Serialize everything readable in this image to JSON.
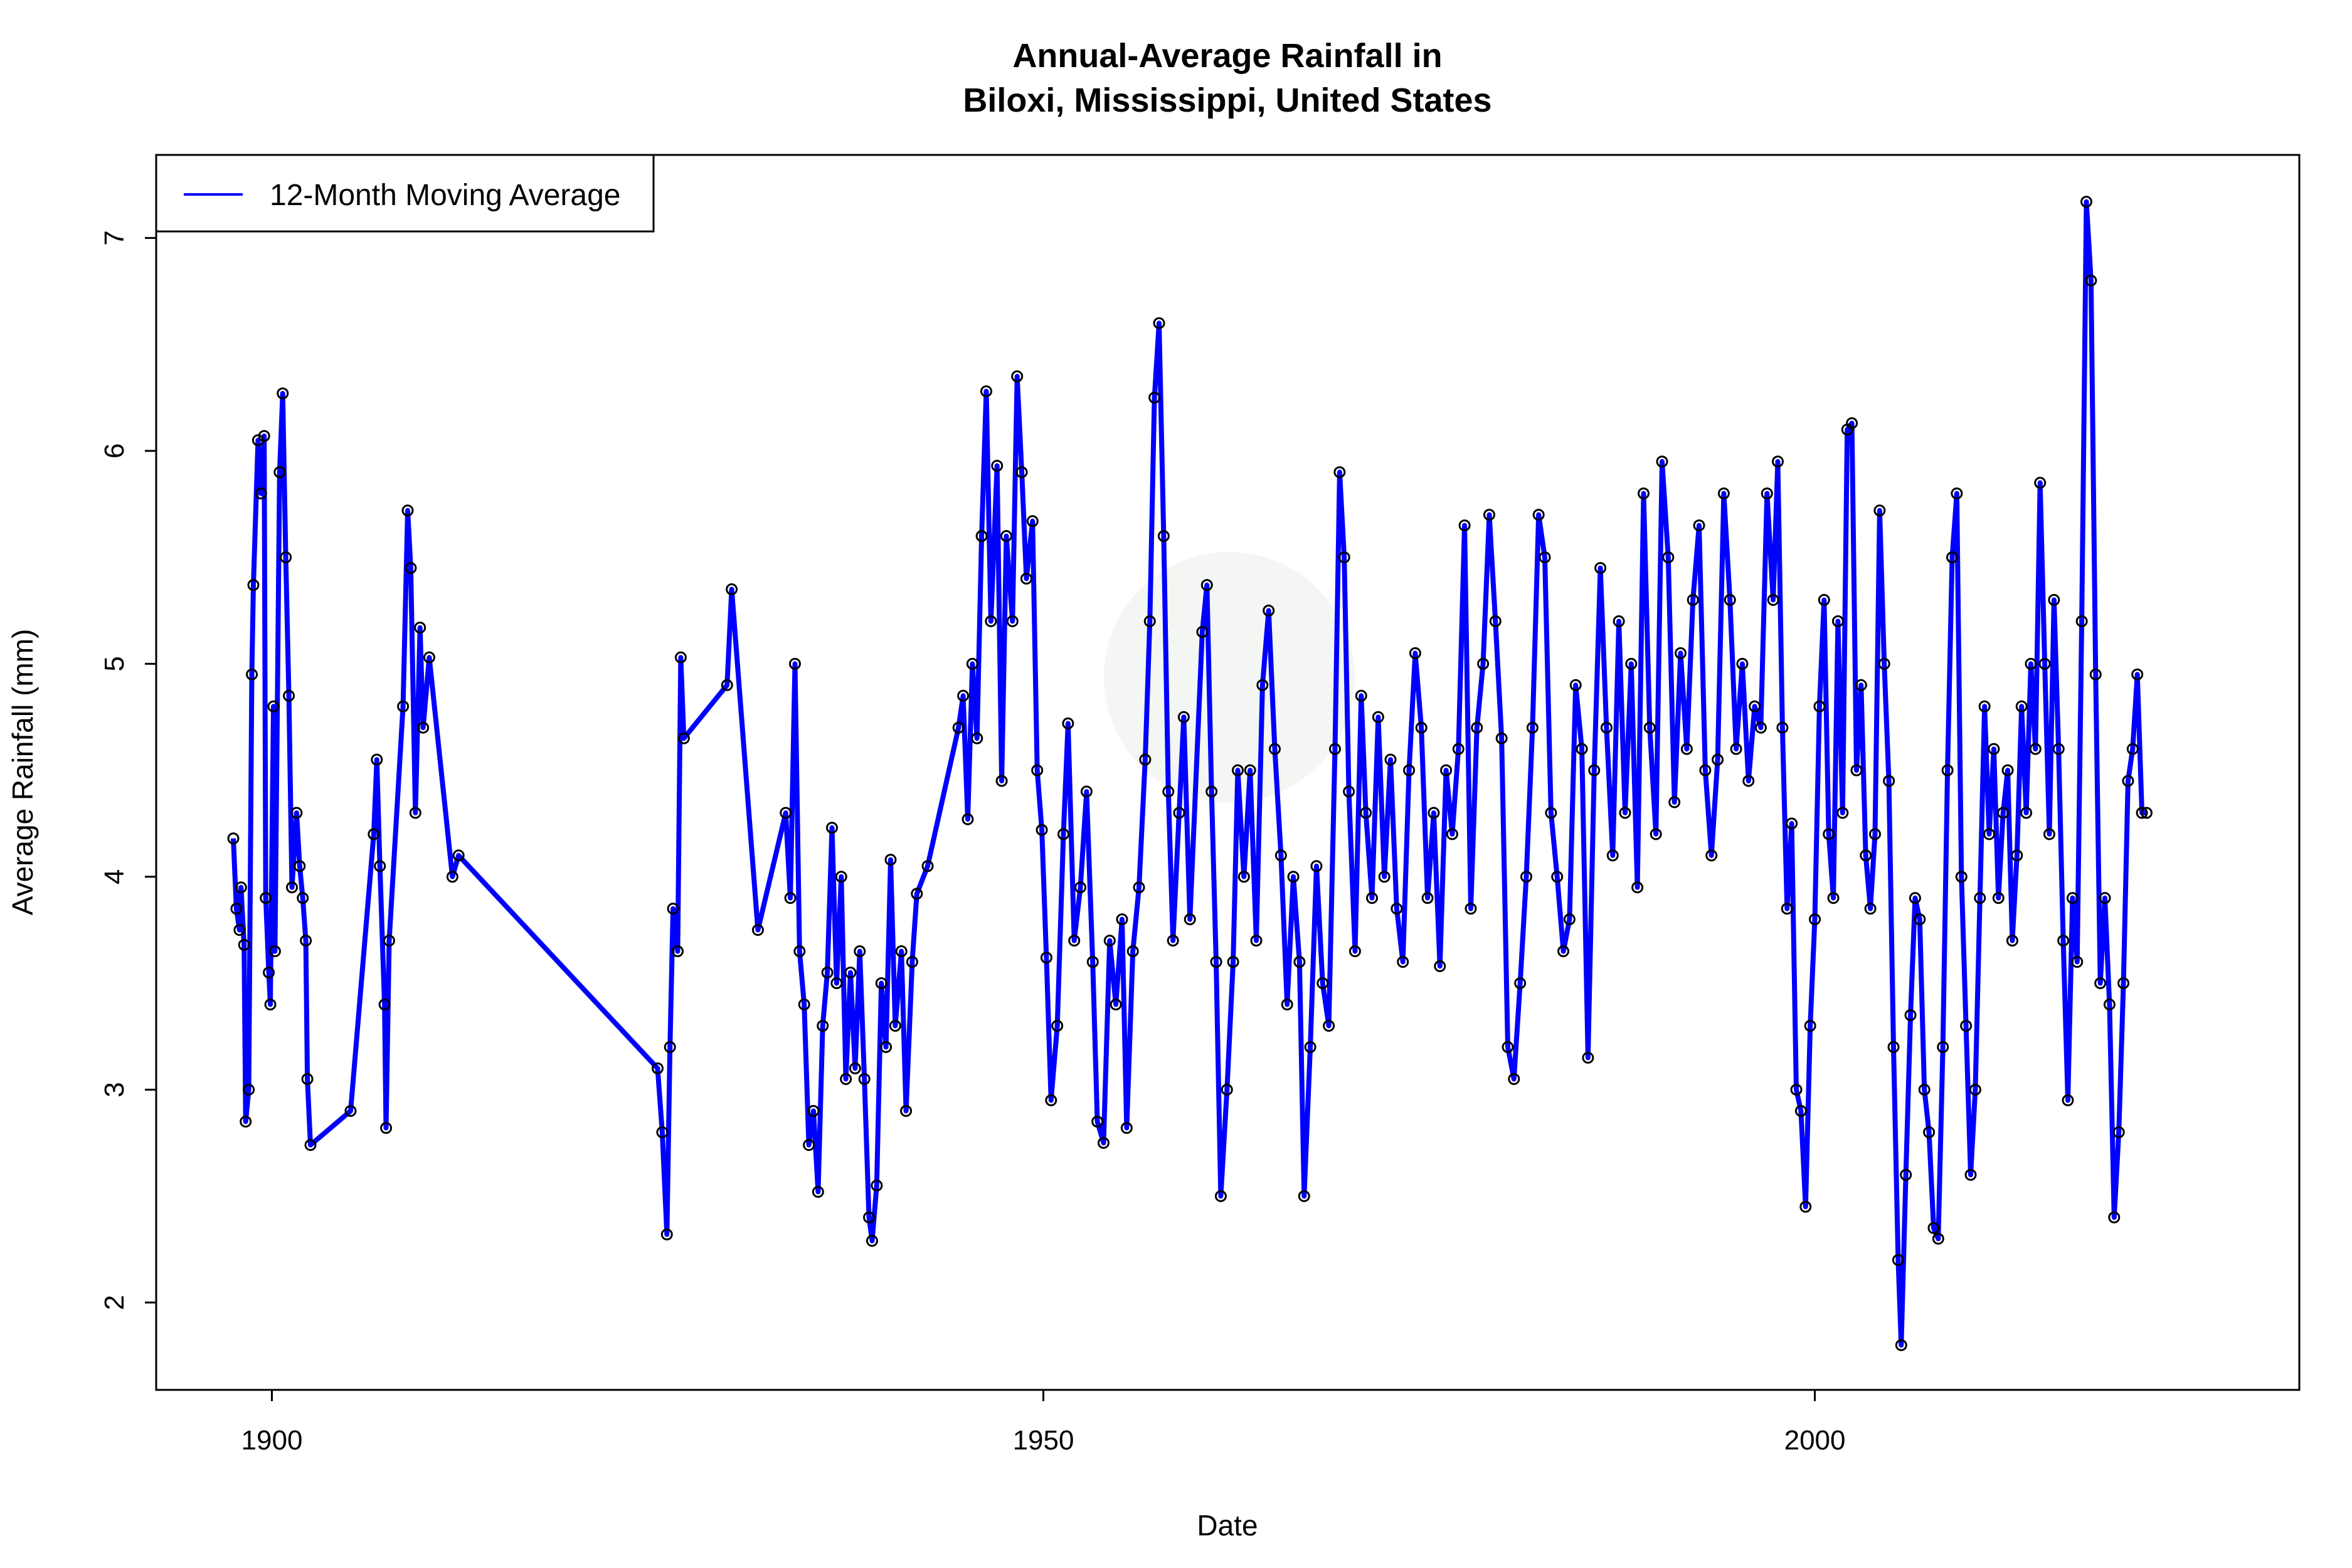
{
  "chart_data": {
    "type": "line",
    "title": "Annual-Average Rainfall in",
    "subtitle": "Biloxi, Mississippi, United States",
    "xlabel": "Date",
    "ylabel": "Average Rainfall (mm)",
    "xlim": [
      1892.5,
      2031.4
    ],
    "ylim": [
      1.59,
      7.39
    ],
    "xticks": [
      1900,
      1950,
      2000
    ],
    "yticks": [
      2,
      3,
      4,
      5,
      6,
      7
    ],
    "grid": false,
    "legend_placement": "top-left",
    "series": [
      {
        "name": "12-Month Moving Average",
        "color": "#0000ff",
        "marker": "open-circle",
        "marker_color": "#000000",
        "gaps": [],
        "x": [
          1897.5,
          1897.7,
          1897.9,
          1898.0,
          1898.2,
          1898.3,
          1898.5,
          1898.7,
          1898.8,
          1899.1,
          1899.3,
          1899.5,
          1899.6,
          1899.8,
          1899.9,
          1900.1,
          1900.2,
          1900.5,
          1900.7,
          1900.9,
          1901.1,
          1901.3,
          1901.6,
          1901.8,
          1902.0,
          1902.2,
          1902.3,
          1902.5,
          1905.1,
          1906.6,
          1906.8,
          1907.0,
          1907.3,
          1907.4,
          1907.6,
          1908.5,
          1908.8,
          1909.0,
          1909.3,
          1909.6,
          1909.8,
          1910.2,
          1911.7,
          1912.1,
          1925.0,
          1925.3,
          1925.6,
          1925.8,
          1926.0,
          1926.3,
          1926.5,
          1926.7,
          1929.5,
          1929.8,
          1931.5,
          1933.3,
          1933.6,
          1933.9,
          1934.2,
          1934.5,
          1934.8,
          1935.1,
          1935.4,
          1935.7,
          1936.0,
          1936.3,
          1936.6,
          1936.9,
          1937.2,
          1937.5,
          1937.8,
          1938.1,
          1938.4,
          1938.7,
          1938.9,
          1939.2,
          1939.5,
          1939.8,
          1940.1,
          1940.4,
          1940.8,
          1941.1,
          1941.5,
          1941.8,
          1942.5,
          1944.5,
          1944.8,
          1945.1,
          1945.4,
          1945.7,
          1946.0,
          1946.3,
          1946.6,
          1947.0,
          1947.3,
          1947.6,
          1948.0,
          1948.3,
          1948.6,
          1948.9,
          1949.3,
          1949.6,
          1949.9,
          1950.2,
          1950.5,
          1950.9,
          1951.3,
          1951.6,
          1952.0,
          1952.4,
          1952.8,
          1953.2,
          1953.5,
          1953.9,
          1954.3,
          1954.7,
          1955.1,
          1955.4,
          1955.8,
          1956.2,
          1956.6,
          1956.9,
          1957.2,
          1957.5,
          1957.8,
          1958.1,
          1958.4,
          1958.8,
          1959.1,
          1959.5,
          1960.3,
          1960.6,
          1960.9,
          1961.2,
          1961.5,
          1961.9,
          1962.3,
          1962.6,
          1963.0,
          1963.4,
          1963.8,
          1964.2,
          1964.6,
          1965.0,
          1965.4,
          1965.8,
          1966.2,
          1966.6,
          1966.9,
          1967.3,
          1967.7,
          1968.1,
          1968.5,
          1968.9,
          1969.2,
          1969.5,
          1969.8,
          1970.2,
          1970.6,
          1970.9,
          1971.3,
          1971.7,
          1972.1,
          1972.5,
          1972.9,
          1973.3,
          1973.7,
          1974.1,
          1974.5,
          1974.9,
          1975.3,
          1975.7,
          1976.1,
          1976.5,
          1976.9,
          1977.3,
          1977.7,
          1978.1,
          1978.5,
          1978.9,
          1979.3,
          1979.7,
          1980.1,
          1980.5,
          1980.9,
          1981.3,
          1981.7,
          1982.1,
          1982.5,
          1982.9,
          1983.3,
          1983.7,
          1984.1,
          1984.5,
          1984.9,
          1985.3,
          1985.7,
          1986.1,
          1986.5,
          1986.9,
          1987.3,
          1987.7,
          1988.1,
          1988.5,
          1988.9,
          1989.3,
          1989.7,
          1990.1,
          1990.5,
          1990.9,
          1991.3,
          1991.7,
          1992.1,
          1992.5,
          1992.9,
          1993.3,
          1993.7,
          1994.1,
          1994.5,
          1994.9,
          1995.3,
          1995.7,
          1996.1,
          1996.5,
          1996.9,
          1997.3,
          1997.6,
          1997.9,
          1998.2,
          1998.5,
          1998.8,
          1999.1,
          1999.4,
          1999.7,
          2000.0,
          2000.3,
          2000.6,
          2000.9,
          2001.2,
          2001.5,
          2001.8,
          2002.1,
          2002.4,
          2002.7,
          2003.0,
          2003.3,
          2003.6,
          2003.9,
          2004.2,
          2004.5,
          2004.8,
          2005.1,
          2005.4,
          2005.6,
          2005.9,
          2006.2,
          2006.5,
          2006.8,
          2007.1,
          2007.4,
          2007.7,
          2008.0,
          2008.3,
          2008.6,
          2008.9,
          2009.2,
          2009.5,
          2009.8,
          2010.1,
          2010.4,
          2010.7,
          2011.0,
          2011.3,
          2011.6,
          2011.9,
          2012.2,
          2012.5,
          2012.8,
          2013.1,
          2013.4,
          2013.7,
          2014.0,
          2014.3,
          2014.6,
          2014.9,
          2015.2,
          2015.5,
          2015.8,
          2016.1,
          2016.4,
          2016.7,
          2017.0,
          2017.3,
          2017.6,
          2017.9,
          2018.2,
          2018.5,
          2018.8,
          2019.1,
          2019.4,
          2019.7,
          2020.0,
          2020.3,
          2020.6,
          2020.9,
          2021.2,
          2021.5
        ],
        "y": [
          4.18,
          3.85,
          3.75,
          3.95,
          3.68,
          2.85,
          3.0,
          4.95,
          5.37,
          6.05,
          5.8,
          6.07,
          3.9,
          3.55,
          3.4,
          4.8,
          3.65,
          5.9,
          6.27,
          5.5,
          4.85,
          3.95,
          4.3,
          4.05,
          3.9,
          3.7,
          3.05,
          2.74,
          2.9,
          4.2,
          4.55,
          4.05,
          3.4,
          2.82,
          3.7,
          4.8,
          5.72,
          5.45,
          4.3,
          5.17,
          4.7,
          5.03,
          4.0,
          4.1,
          3.1,
          2.8,
          2.32,
          3.2,
          3.85,
          3.65,
          5.03,
          4.65,
          4.9,
          5.35,
          3.75,
          4.3,
          3.9,
          5.0,
          3.65,
          3.4,
          2.74,
          2.9,
          2.52,
          3.3,
          3.55,
          4.23,
          3.5,
          4.0,
          3.05,
          3.55,
          3.1,
          3.65,
          3.05,
          2.4,
          2.29,
          2.55,
          3.5,
          3.2,
          4.08,
          3.3,
          3.65,
          2.9,
          3.6,
          3.92,
          4.05,
          4.7,
          4.85,
          4.27,
          5.0,
          4.65,
          5.6,
          6.28,
          5.2,
          5.93,
          4.45,
          5.6,
          5.2,
          6.35,
          5.9,
          5.4,
          5.67,
          4.5,
          4.22,
          3.62,
          2.95,
          3.3,
          4.2,
          4.72,
          3.7,
          3.95,
          4.4,
          3.6,
          2.85,
          2.75,
          3.7,
          3.4,
          3.8,
          2.82,
          3.65,
          3.95,
          4.55,
          5.2,
          6.25,
          6.6,
          5.6,
          4.4,
          3.7,
          4.3,
          4.75,
          3.8,
          5.15,
          5.37,
          4.4,
          3.6,
          2.5,
          3.0,
          3.6,
          4.5,
          4.0,
          4.5,
          3.7,
          4.9,
          5.25,
          4.6,
          4.1,
          3.4,
          4.0,
          3.6,
          2.5,
          3.2,
          4.05,
          3.5,
          3.3,
          4.6,
          5.9,
          5.5,
          4.4,
          3.65,
          4.85,
          4.3,
          3.9,
          4.75,
          4.0,
          4.55,
          3.85,
          3.6,
          4.5,
          5.05,
          4.7,
          3.9,
          4.3,
          3.58,
          4.5,
          4.2,
          4.6,
          5.65,
          3.85,
          4.7,
          5.0,
          5.7,
          5.2,
          4.65,
          3.2,
          3.05,
          3.5,
          4.0,
          4.7,
          5.7,
          5.5,
          4.3,
          4.0,
          3.65,
          3.8,
          4.9,
          4.6,
          3.15,
          4.5,
          5.45,
          4.7,
          4.1,
          5.2,
          4.3,
          5.0,
          3.95,
          5.8,
          4.7,
          4.2,
          5.95,
          5.5,
          4.35,
          5.05,
          4.6,
          5.3,
          5.65,
          4.5,
          4.1,
          4.55,
          5.8,
          5.3,
          4.6,
          5.0,
          4.45,
          4.8,
          4.7,
          5.8,
          5.3,
          5.95,
          4.7,
          3.85,
          4.25,
          3.0,
          2.9,
          2.45,
          3.3,
          3.8,
          4.8,
          5.3,
          4.2,
          3.9,
          5.2,
          4.3,
          6.1,
          6.13,
          4.5,
          4.9,
          4.1,
          3.85,
          4.2,
          5.72,
          5.0,
          4.45,
          3.2,
          2.2,
          1.8,
          2.6,
          3.35,
          3.9,
          3.8,
          3.0,
          2.8,
          2.35,
          2.3,
          3.2,
          4.5,
          5.5,
          5.8,
          4.0,
          3.3,
          2.6,
          3.0,
          3.9,
          4.8,
          4.2,
          4.6,
          3.9,
          4.3,
          4.5,
          3.7,
          4.1,
          4.8,
          4.3,
          5.0,
          4.6,
          5.85,
          5.0,
          4.2,
          5.3,
          4.6,
          3.7,
          2.95,
          3.9,
          3.6,
          5.2,
          7.17,
          6.8,
          4.95,
          3.5,
          3.9,
          3.4,
          2.4,
          2.8,
          3.5,
          4.45,
          4.6,
          4.95,
          4.3,
          4.3
        ]
      }
    ]
  }
}
